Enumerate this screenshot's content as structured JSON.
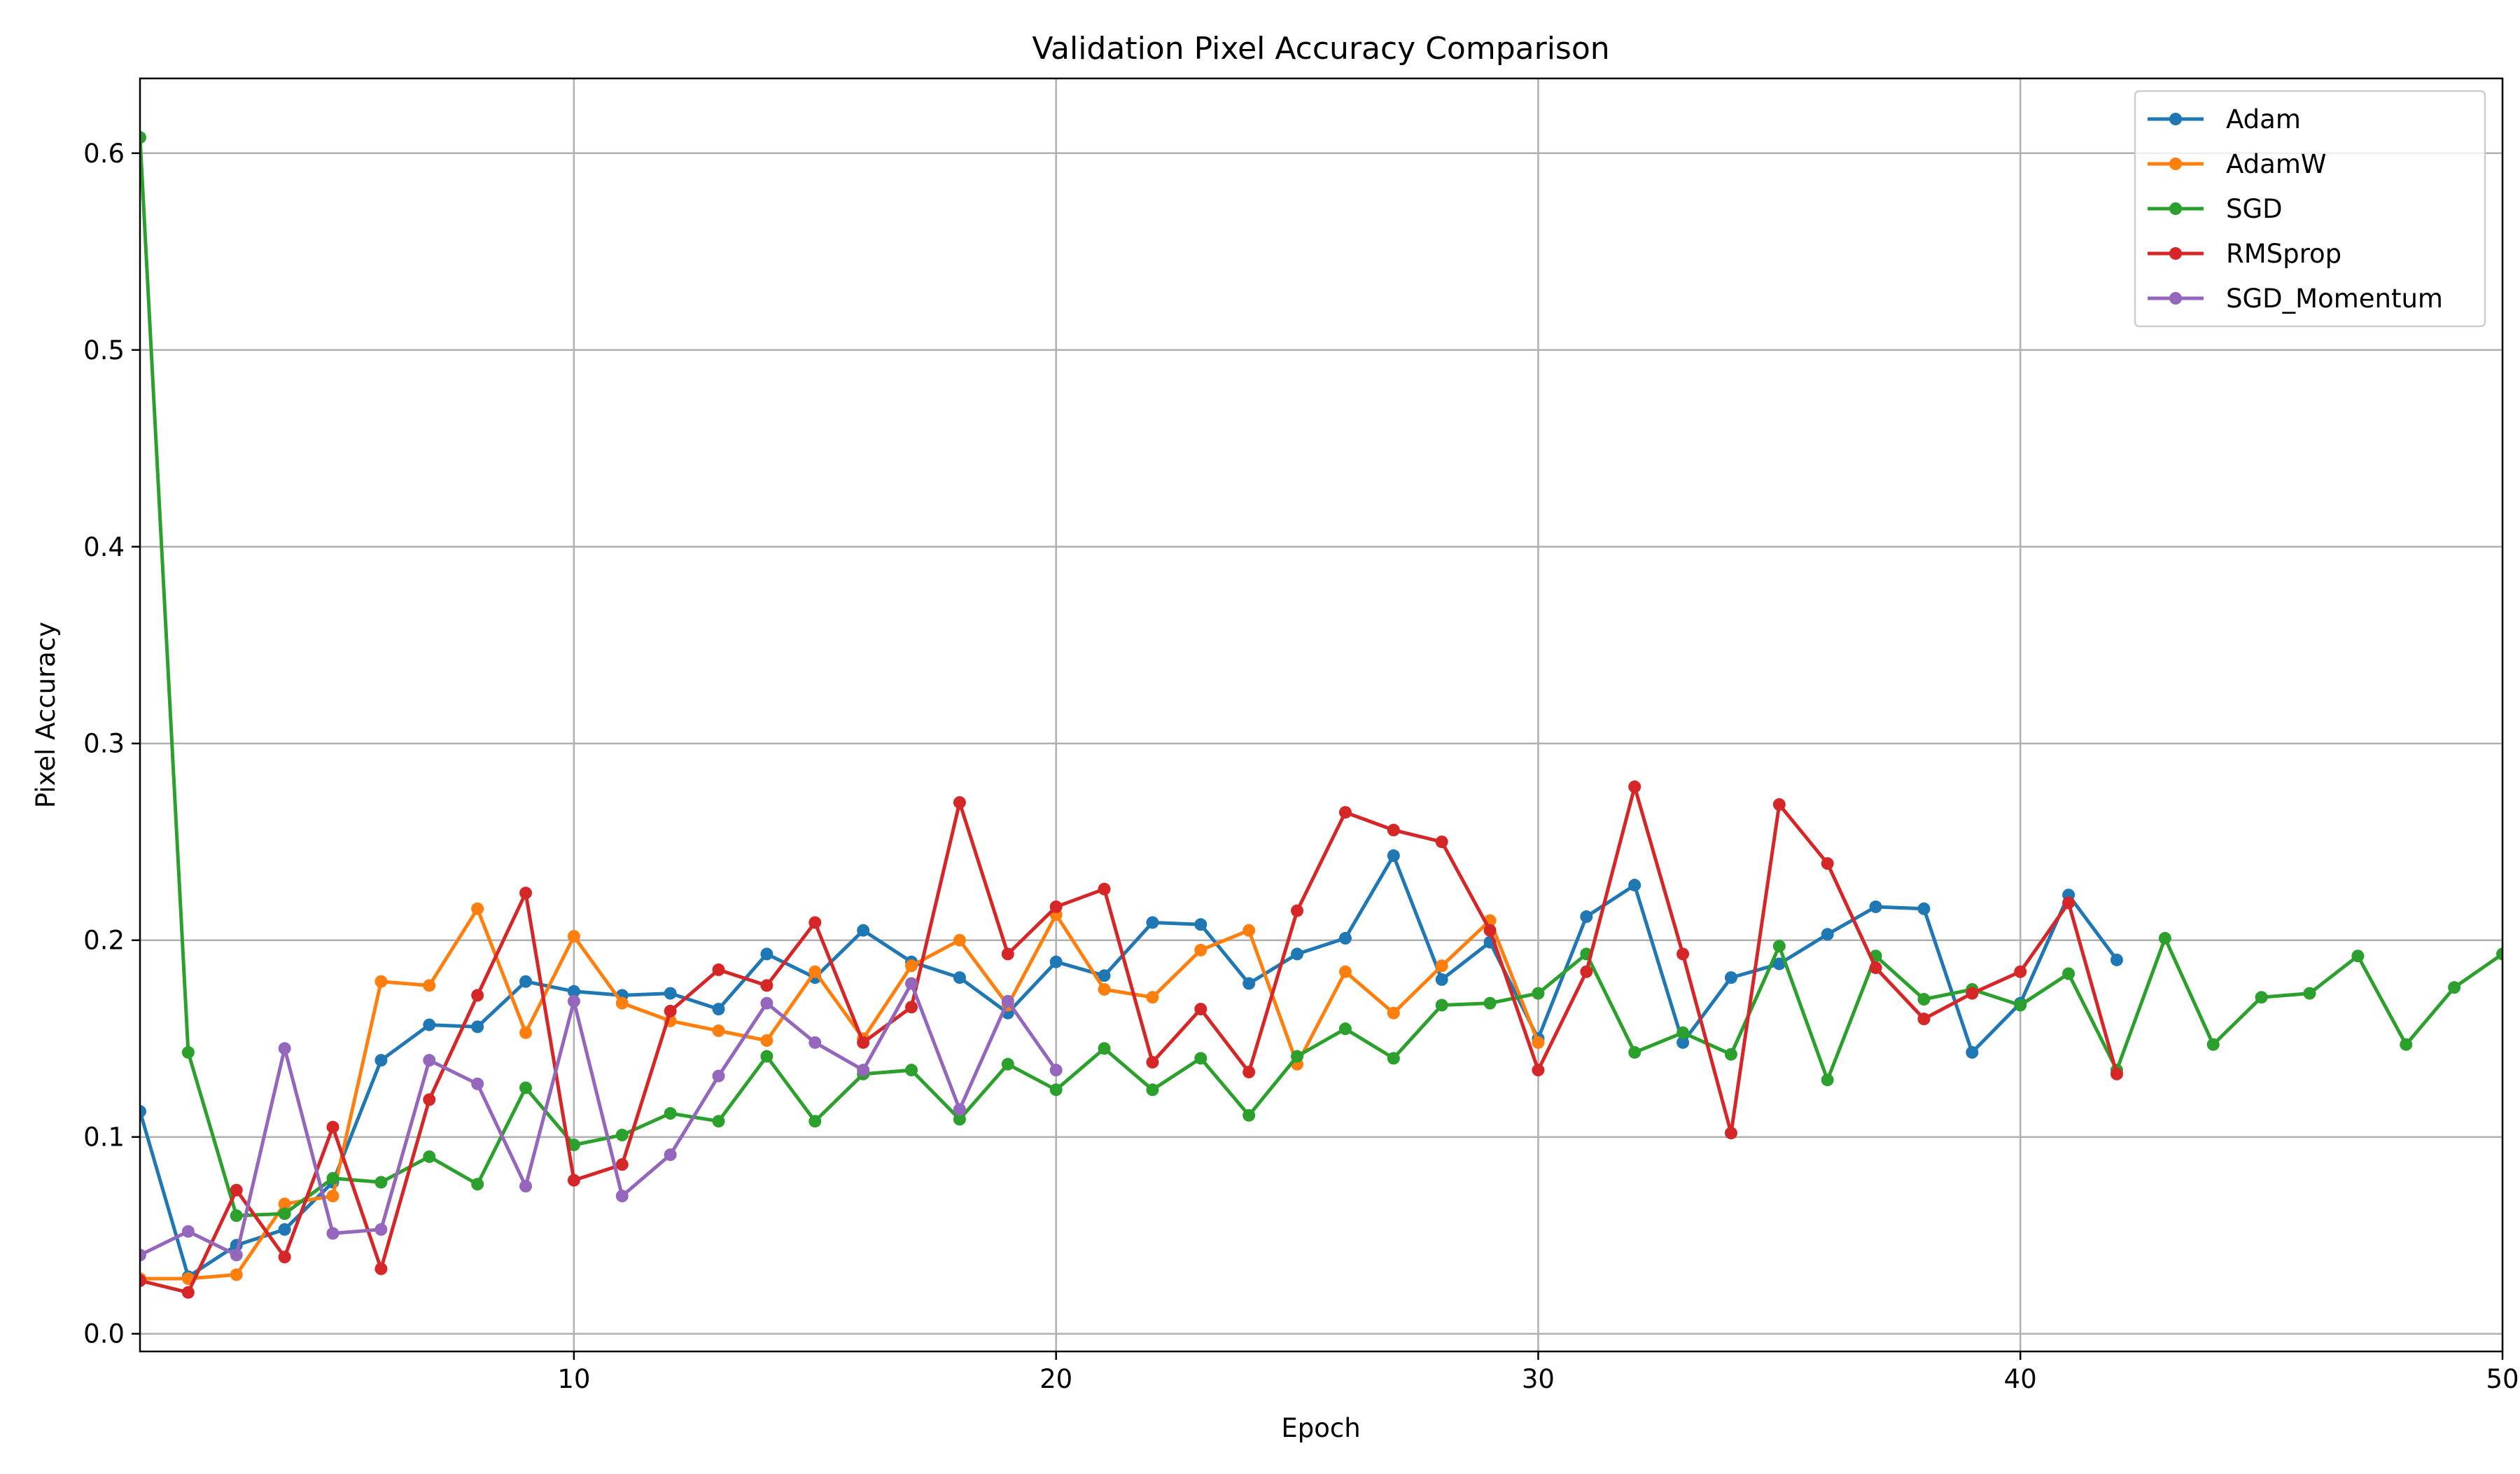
{
  "chart_data": {
    "type": "line",
    "title": "Validation Pixel Accuracy Comparison",
    "xlabel": "Epoch",
    "ylabel": "Pixel Accuracy",
    "xlim": [
      1,
      50
    ],
    "ylim": [
      -0.009,
      0.638
    ],
    "xticks": [
      10,
      20,
      30,
      40,
      50
    ],
    "yticks": [
      0.0,
      0.1,
      0.2,
      0.3,
      0.4,
      0.5,
      0.6
    ],
    "xtick_labels": [
      "10",
      "20",
      "30",
      "40",
      "50"
    ],
    "ytick_labels": [
      "0.0",
      "0.1",
      "0.2",
      "0.3",
      "0.4",
      "0.5",
      "0.6"
    ],
    "grid": true,
    "legend_position": "top-right",
    "series": [
      {
        "name": "Adam",
        "color": "#1f77b4",
        "x": [
          1,
          2,
          3,
          4,
          5,
          6,
          7,
          8,
          9,
          10,
          11,
          12,
          13,
          14,
          15,
          16,
          17,
          18,
          19,
          20,
          21,
          22,
          23,
          24,
          25,
          26,
          27,
          28,
          29,
          30,
          31,
          32,
          33,
          34,
          35,
          36,
          37,
          38,
          39,
          40,
          41,
          42
        ],
        "values": [
          0.113,
          0.029,
          0.045,
          0.053,
          0.077,
          0.139,
          0.157,
          0.156,
          0.179,
          0.174,
          0.172,
          0.173,
          0.165,
          0.193,
          0.181,
          0.205,
          0.189,
          0.181,
          0.163,
          0.189,
          0.182,
          0.209,
          0.208,
          0.178,
          0.193,
          0.201,
          0.243,
          0.18,
          0.199,
          0.15,
          0.212,
          0.228,
          0.148,
          0.181,
          0.188,
          0.203,
          0.217,
          0.216,
          0.143,
          0.168,
          0.223,
          0.19
        ]
      },
      {
        "name": "AdamW",
        "color": "#ff7f0e",
        "x": [
          1,
          2,
          3,
          4,
          5,
          6,
          7,
          8,
          9,
          10,
          11,
          12,
          13,
          14,
          15,
          16,
          17,
          18,
          19,
          20,
          21,
          22,
          23,
          24,
          25,
          26,
          27,
          28,
          29,
          30
        ],
        "values": [
          0.028,
          0.028,
          0.03,
          0.066,
          0.07,
          0.179,
          0.177,
          0.216,
          0.153,
          0.202,
          0.168,
          0.159,
          0.154,
          0.149,
          0.184,
          0.15,
          0.187,
          0.2,
          0.167,
          0.213,
          0.175,
          0.171,
          0.195,
          0.205,
          0.137,
          0.184,
          0.163,
          0.187,
          0.21,
          0.148
        ]
      },
      {
        "name": "SGD",
        "color": "#2ca02c",
        "x": [
          1,
          2,
          3,
          4,
          5,
          6,
          7,
          8,
          9,
          10,
          11,
          12,
          13,
          14,
          15,
          16,
          17,
          18,
          19,
          20,
          21,
          22,
          23,
          24,
          25,
          26,
          27,
          28,
          29,
          30,
          31,
          32,
          33,
          34,
          35,
          36,
          37,
          38,
          39,
          40,
          41,
          42,
          43,
          44,
          45,
          46,
          47,
          48,
          49,
          50
        ],
        "values": [
          0.608,
          0.143,
          0.06,
          0.061,
          0.079,
          0.077,
          0.09,
          0.076,
          0.125,
          0.096,
          0.101,
          0.112,
          0.108,
          0.141,
          0.108,
          0.132,
          0.134,
          0.109,
          0.137,
          0.124,
          0.145,
          0.124,
          0.14,
          0.111,
          0.141,
          0.155,
          0.14,
          0.167,
          0.168,
          0.173,
          0.193,
          0.143,
          0.153,
          0.142,
          0.197,
          0.129,
          0.192,
          0.17,
          0.175,
          0.167,
          0.183,
          0.134,
          0.201,
          0.147,
          0.171,
          0.173,
          0.192,
          0.147,
          0.176,
          0.193
        ]
      },
      {
        "name": "RMSprop",
        "color": "#d62728",
        "x": [
          1,
          2,
          3,
          4,
          5,
          6,
          7,
          8,
          9,
          10,
          11,
          12,
          13,
          14,
          15,
          16,
          17,
          18,
          19,
          20,
          21,
          22,
          23,
          24,
          25,
          26,
          27,
          28,
          29,
          30,
          31,
          32,
          33,
          34,
          35,
          36,
          37,
          38,
          39,
          40,
          41,
          42
        ],
        "values": [
          0.027,
          0.021,
          0.073,
          0.039,
          0.105,
          0.033,
          0.119,
          0.172,
          0.224,
          0.078,
          0.086,
          0.164,
          0.185,
          0.177,
          0.209,
          0.148,
          0.166,
          0.27,
          0.193,
          0.217,
          0.226,
          0.138,
          0.165,
          0.133,
          0.215,
          0.265,
          0.256,
          0.25,
          0.205,
          0.134,
          0.184,
          0.278,
          0.193,
          0.102,
          0.269,
          0.239,
          0.186,
          0.16,
          0.173,
          0.184,
          0.219,
          0.132
        ]
      },
      {
        "name": "SGD_Momentum",
        "color": "#9467bd",
        "x": [
          1,
          2,
          3,
          4,
          5,
          6,
          7,
          8,
          9,
          10,
          11,
          12,
          13,
          14,
          15,
          16,
          17,
          18,
          19,
          20
        ],
        "values": [
          0.04,
          0.052,
          0.04,
          0.145,
          0.051,
          0.053,
          0.139,
          0.127,
          0.075,
          0.169,
          0.07,
          0.091,
          0.131,
          0.168,
          0.148,
          0.134,
          0.178,
          0.114,
          0.169,
          0.134
        ]
      }
    ]
  }
}
